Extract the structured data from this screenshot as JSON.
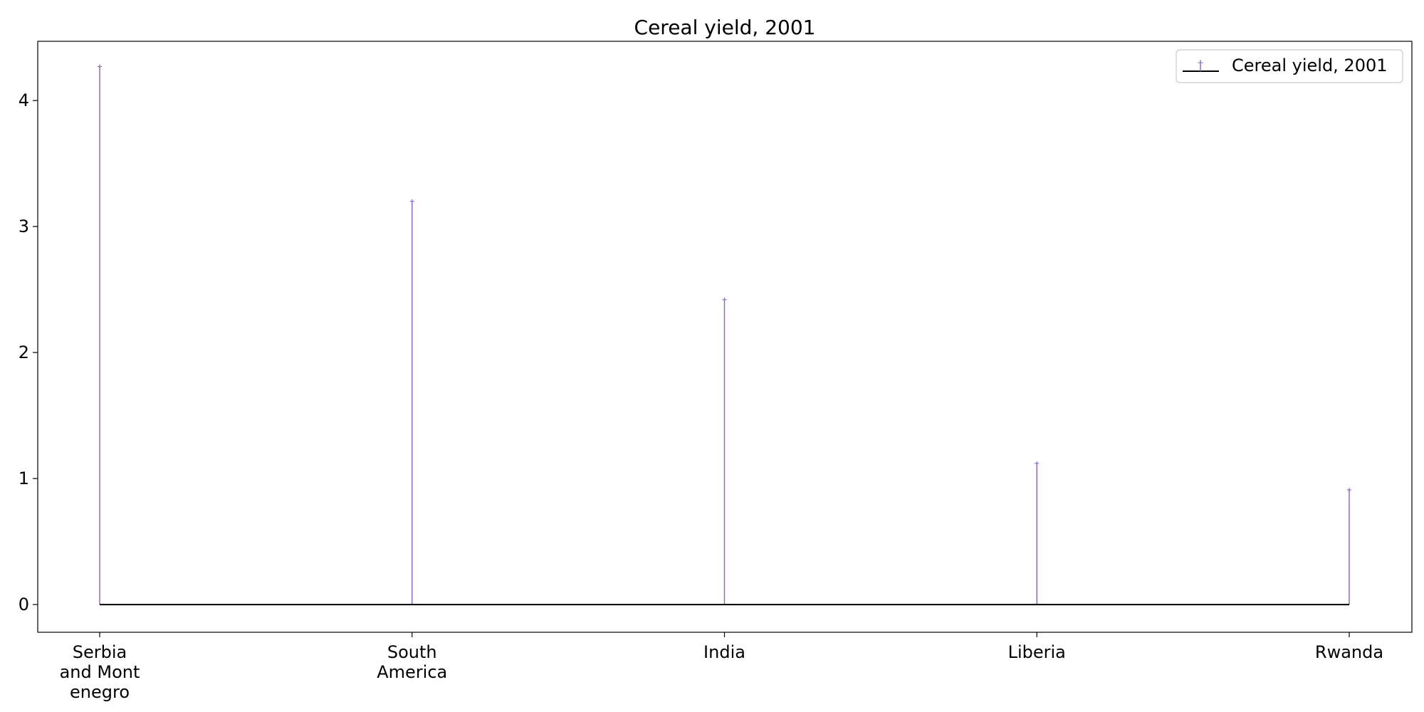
{
  "chart_data": {
    "type": "bar",
    "subtype": "stem",
    "title": "Cereal yield, 2001",
    "xlabel": "",
    "ylabel": "",
    "categories": [
      "Serbia and Montenegro",
      "South America",
      "India",
      "Liberia",
      "Rwanda"
    ],
    "category_tick_labels": [
      [
        "Serbia",
        "and Mont",
        "enegro"
      ],
      [
        "South",
        "America"
      ],
      [
        "India"
      ],
      [
        "Liberia"
      ],
      [
        "Rwanda"
      ]
    ],
    "series": [
      {
        "name": "Cereal yield, 2001",
        "values": [
          4.27,
          3.2,
          2.42,
          1.12,
          0.91
        ]
      }
    ],
    "ylim": [
      -0.22,
      4.47
    ],
    "yticks": [
      0,
      1,
      2,
      3,
      4
    ],
    "grid": false,
    "legend_position": "top-right",
    "colors": {
      "stem": "#9467d6",
      "marker": "#9467d6",
      "baseline": "#000000",
      "axes": "#000000"
    }
  }
}
